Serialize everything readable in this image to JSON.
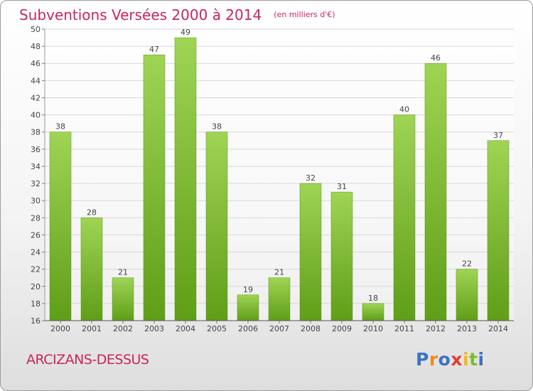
{
  "chart_data": {
    "type": "bar",
    "title": "Subventions Versées 2000 à 2014",
    "subtitle": "(en milliers d'€)",
    "categories": [
      "2000",
      "2001",
      "2002",
      "2003",
      "2004",
      "2005",
      "2006",
      "2007",
      "2008",
      "2009",
      "2010",
      "2011",
      "2012",
      "2013",
      "2014"
    ],
    "values": [
      38,
      28,
      21,
      47,
      49,
      38,
      19,
      21,
      32,
      31,
      18,
      40,
      46,
      22,
      37
    ],
    "value_labels": [
      "38",
      "28",
      "21",
      "47",
      "49",
      "38",
      "19",
      "21",
      "32",
      "31",
      "18",
      "40",
      "46",
      "22",
      "37"
    ],
    "ylim": [
      16,
      50
    ],
    "yticks": [
      16,
      18,
      20,
      22,
      24,
      26,
      28,
      30,
      32,
      34,
      36,
      38,
      40,
      42,
      44,
      46,
      48,
      50
    ],
    "ytick_labels": [
      "16",
      "18",
      "20",
      "22",
      "24",
      "26",
      "28",
      "30",
      "32",
      "34",
      "36",
      "38",
      "40",
      "42",
      "44",
      "46",
      "48",
      "50"
    ],
    "xlabel": "",
    "ylabel": "",
    "grid": true,
    "bar_color_top": "#9fd455",
    "bar_color_bottom": "#5f9e17"
  },
  "footer": {
    "commune": "ARCIZANS-DESSUS"
  },
  "logo": {
    "text": "Proxiti",
    "letters": [
      "P",
      "r",
      "o",
      "x",
      "i",
      "t",
      "i"
    ],
    "colors": [
      "#3b73c4",
      "#f08a1c",
      "#3b73c4",
      "#e23c2b",
      "#f4b81c",
      "#7dbb2d",
      "#3b73c4"
    ]
  },
  "colors": {
    "title": "#c8265b",
    "grid": "#d7d7d7",
    "axis": "#555555"
  }
}
